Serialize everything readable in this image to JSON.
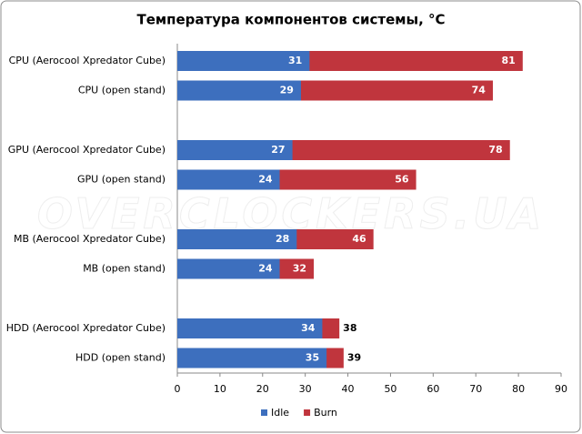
{
  "chart_data": {
    "type": "bar",
    "orientation": "horizontal",
    "title": "Температура компонентов системы, °C",
    "watermark": "OVERCLOCKERS.UA",
    "categories": [
      "CPU (Aerocool Xpredator Cube)",
      "CPU (open stand)",
      "GPU (Aerocool Xpredator Cube)",
      "GPU (open stand)",
      "MB (Aerocool Xpredator Cube)",
      "MB (open stand)",
      "HDD (Aerocool Xpredator Cube)",
      "HDD (open stand)"
    ],
    "series": [
      {
        "name": "Burn",
        "color": "#c0353d",
        "values": [
          81,
          74,
          78,
          56,
          46,
          32,
          38,
          39
        ]
      },
      {
        "name": "Idle",
        "color": "#3d6fbe",
        "values": [
          31,
          29,
          27,
          24,
          28,
          24,
          34,
          35
        ]
      }
    ],
    "legend_order": [
      "Idle",
      "Burn"
    ],
    "xlim": [
      0,
      90
    ],
    "xticks": [
      0,
      10,
      20,
      30,
      40,
      50,
      60,
      70,
      80,
      90
    ],
    "grid": false,
    "legend": "bottom"
  }
}
